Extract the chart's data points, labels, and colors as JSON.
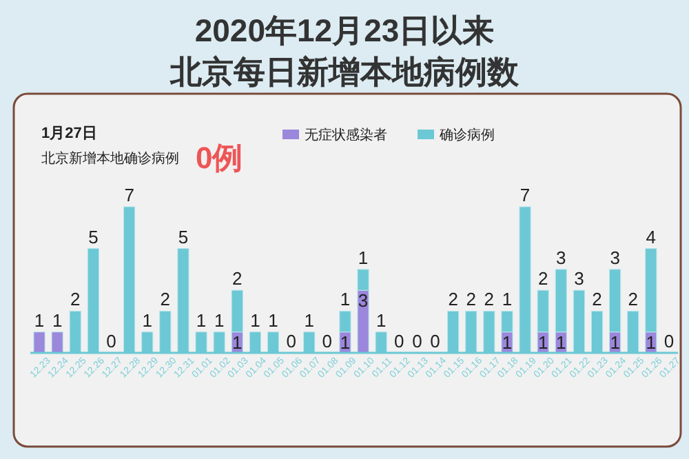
{
  "chart_data": {
    "type": "bar",
    "stacked": true,
    "title": "2020年12月23日以来",
    "subtitle": "北京每日新增本地病例数",
    "annotations": [
      "1月27日",
      "北京新增本地确诊病例",
      "0例"
    ],
    "legend": "top right",
    "categories": [
      "12.23",
      "12.24",
      "12.25",
      "12.26",
      "12.27",
      "12.28",
      "12.29",
      "12.30",
      "12.31",
      "01.01",
      "01.02",
      "01.03",
      "01.04",
      "01.05",
      "01.06",
      "01.07",
      "01.08",
      "01.09",
      "01.10",
      "01.11",
      "01.12",
      "01.13",
      "01.14",
      "01.15",
      "01.16",
      "01.17",
      "01.18",
      "01.19",
      "01.20",
      "01.21",
      "01.22",
      "01.23",
      "01.24",
      "01.25",
      "01.26",
      "01.27"
    ],
    "series": [
      {
        "name": "无症状感染者",
        "color": "#9b87dc",
        "values": [
          1,
          1,
          0,
          0,
          0,
          0,
          0,
          0,
          0,
          0,
          0,
          1,
          0,
          0,
          0,
          0,
          0,
          1,
          3,
          0,
          0,
          0,
          0,
          0,
          0,
          0,
          1,
          0,
          1,
          1,
          0,
          0,
          1,
          0,
          1,
          0
        ],
        "value_labels": [
          "1",
          "1",
          null,
          null,
          null,
          null,
          null,
          null,
          null,
          null,
          null,
          "1",
          null,
          null,
          null,
          null,
          null,
          "1",
          "3",
          null,
          null,
          null,
          null,
          null,
          null,
          null,
          "1",
          null,
          "1",
          "1",
          null,
          null,
          "1",
          null,
          "1",
          null
        ]
      },
      {
        "name": "确诊病例",
        "color": "#6cc8d4",
        "values": [
          0,
          0,
          2,
          5,
          0,
          7,
          1,
          2,
          5,
          1,
          1,
          2,
          1,
          1,
          0,
          1,
          0,
          1,
          1,
          1,
          0,
          0,
          0,
          2,
          2,
          2,
          1,
          7,
          2,
          3,
          3,
          2,
          3,
          2,
          4,
          0
        ],
        "value_labels": [
          null,
          null,
          "2",
          "5",
          "0",
          "7",
          "1",
          "2",
          "5",
          "1",
          "1",
          "2",
          "1",
          "1",
          "0",
          "1",
          "0",
          "1",
          "1",
          "1",
          "0",
          "0",
          "0",
          "2",
          "2",
          "2",
          "1",
          "7",
          "2",
          "3",
          "3",
          "2",
          "3",
          "2",
          "4",
          "0"
        ]
      }
    ]
  }
}
